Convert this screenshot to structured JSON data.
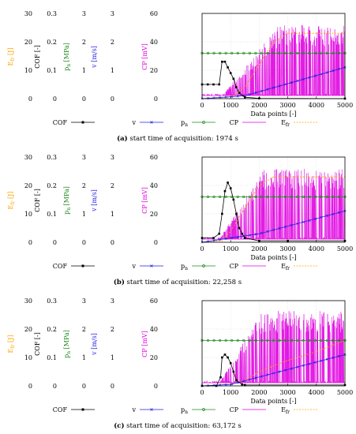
{
  "colors": {
    "cof": "#000000",
    "v": "#1f1fe0",
    "pn": "#1f8a1f",
    "cp": "#e000e0",
    "efr": "#ffa500",
    "grid": "#cccccc"
  },
  "chart_data": [
    {
      "type": "line",
      "caption_label": "(a)",
      "caption_text": "start time of acquisition: 1974 s",
      "xlabel": "Data points [-]",
      "xlim": [
        0,
        5000
      ],
      "x_ticks": [
        "0",
        "1000",
        "2000",
        "3000",
        "4000",
        "5000"
      ],
      "axes": [
        {
          "label": "E",
          "label_sub": "fr",
          "label_unit": "[J]",
          "color": "#ffa500",
          "ticks": [
            "30",
            "20",
            "10",
            "0"
          ]
        },
        {
          "label": "COF [-]",
          "color": "#000000",
          "ticks": [
            "0.3",
            "0.2",
            "0.1",
            "0"
          ]
        },
        {
          "label": "p",
          "label_sub": "n",
          "label_unit": "[MPa]",
          "color": "#1f8a1f",
          "ticks": [
            "3",
            "2",
            "1",
            "0"
          ]
        },
        {
          "label": "v [m/s]",
          "color": "#1f1fe0",
          "ticks": [
            "3",
            "2",
            "1",
            "0"
          ]
        },
        {
          "label": "CP [mV]",
          "color": "#e000e0",
          "ticks": [
            "60",
            "40",
            "20",
            "0"
          ]
        }
      ],
      "ylim": [
        0,
        60
      ],
      "series": [
        {
          "name": "COF",
          "values": [
            [
              0,
              0.05
            ],
            [
              200,
              0.05
            ],
            [
              400,
              0.05
            ],
            [
              600,
              0.05
            ],
            [
              700,
              0.13
            ],
            [
              800,
              0.13
            ],
            [
              900,
              0.11
            ],
            [
              1000,
              0.09
            ],
            [
              1100,
              0.07
            ],
            [
              1200,
              0.04
            ],
            [
              1300,
              0.02
            ],
            [
              1500,
              0.005
            ],
            [
              2000,
              0.001
            ],
            [
              5000,
              0.0
            ]
          ]
        },
        {
          "name": "v",
          "values": [
            [
              0,
              0
            ],
            [
              1500,
              0.1
            ],
            [
              5000,
              1.1
            ]
          ]
        },
        {
          "name": "pn",
          "values": [
            [
              0,
              1.6
            ],
            [
              5000,
              1.6
            ]
          ]
        },
        {
          "name": "Efr",
          "values": [
            [
              0,
              0
            ],
            [
              1000,
              0.5
            ],
            [
              1500,
              4
            ],
            [
              2000,
              12
            ],
            [
              2500,
              20
            ],
            [
              3000,
              23
            ],
            [
              3500,
              23
            ],
            [
              4000,
              23
            ],
            [
              5000,
              23
            ]
          ]
        },
        {
          "name": "CP",
          "onset": 700,
          "baseline": 2,
          "peak_growth": 200,
          "peak_max": 50
        }
      ]
    },
    {
      "type": "line",
      "caption_label": "(b)",
      "caption_text": "start time of acquisition: 22,258 s",
      "xlabel": "Data points [-]",
      "xlim": [
        0,
        5000
      ],
      "x_ticks": [
        "0",
        "1000",
        "2000",
        "3000",
        "4000",
        "5000"
      ],
      "axes": [
        {
          "label": "E",
          "label_sub": "fr",
          "label_unit": "[J]",
          "color": "#ffa500",
          "ticks": [
            "30",
            "20",
            "10",
            "0"
          ]
        },
        {
          "label": "COF [-]",
          "color": "#000000",
          "ticks": [
            "0.3",
            "0.2",
            "0.1",
            "0"
          ]
        },
        {
          "label": "p",
          "label_sub": "n",
          "label_unit": "[MPa]",
          "color": "#1f8a1f",
          "ticks": [
            "3",
            "2",
            "1",
            "0"
          ]
        },
        {
          "label": "v [m/s]",
          "color": "#1f1fe0",
          "ticks": [
            "3",
            "2",
            "1",
            "0"
          ]
        },
        {
          "label": "CP [mV]",
          "color": "#e000e0",
          "ticks": [
            "60",
            "40",
            "20",
            "0"
          ]
        }
      ],
      "ylim": [
        0,
        60
      ],
      "series": [
        {
          "name": "COF",
          "values": [
            [
              0,
              0.015
            ],
            [
              400,
              0.015
            ],
            [
              600,
              0.03
            ],
            [
              700,
              0.1
            ],
            [
              800,
              0.18
            ],
            [
              900,
              0.21
            ],
            [
              1000,
              0.19
            ],
            [
              1100,
              0.15
            ],
            [
              1200,
              0.1
            ],
            [
              1300,
              0.05
            ],
            [
              1400,
              0.03
            ],
            [
              1500,
              0.015
            ],
            [
              2000,
              0.005
            ],
            [
              3000,
              0.005
            ],
            [
              5000,
              0.005
            ]
          ]
        },
        {
          "name": "v",
          "values": [
            [
              0,
              0
            ],
            [
              2000,
              0.3
            ],
            [
              5000,
              1.1
            ]
          ]
        },
        {
          "name": "pn",
          "values": [
            [
              0,
              1.6
            ],
            [
              5000,
              1.6
            ]
          ]
        },
        {
          "name": "Efr",
          "values": [
            [
              0,
              0
            ],
            [
              700,
              0.5
            ],
            [
              1000,
              4
            ],
            [
              1500,
              12
            ],
            [
              2000,
              20
            ],
            [
              2500,
              23
            ],
            [
              3000,
              23
            ],
            [
              5000,
              23
            ]
          ]
        },
        {
          "name": "CP",
          "onset": 600,
          "baseline": 2,
          "peak_growth": 150,
          "peak_max": 50
        }
      ]
    },
    {
      "type": "line",
      "caption_label": "(c)",
      "caption_text": "start time of acquisition: 63,172 s",
      "xlabel": "Data points [-]",
      "xlim": [
        0,
        5000
      ],
      "x_ticks": [
        "0",
        "1000",
        "2000",
        "3000",
        "4000",
        "5000"
      ],
      "axes": [
        {
          "label": "E",
          "label_sub": "fr",
          "label_unit": "[J]",
          "color": "#ffa500",
          "ticks": [
            "30",
            "20",
            "10",
            "0"
          ]
        },
        {
          "label": "COF [-]",
          "color": "#000000",
          "ticks": [
            "0.3",
            "0.2",
            "0.1",
            "0"
          ]
        },
        {
          "label": "p",
          "label_sub": "n",
          "label_unit": "[MPa]",
          "color": "#1f8a1f",
          "ticks": [
            "3",
            "2",
            "1",
            "0"
          ]
        },
        {
          "label": "v [m/s]",
          "color": "#1f1fe0",
          "ticks": [
            "3",
            "2",
            "1",
            "0"
          ]
        },
        {
          "label": "CP [mV]",
          "color": "#e000e0",
          "ticks": [
            "60",
            "40",
            "20",
            "0"
          ]
        }
      ],
      "ylim": [
        0,
        60
      ],
      "series": [
        {
          "name": "COF",
          "values": [
            [
              0,
              0.0
            ],
            [
              500,
              0.0
            ],
            [
              650,
              0.03
            ],
            [
              700,
              0.1
            ],
            [
              800,
              0.11
            ],
            [
              900,
              0.1
            ],
            [
              1000,
              0.08
            ],
            [
              1100,
              0.05
            ],
            [
              1200,
              0.02
            ],
            [
              1400,
              0.005
            ],
            [
              1500,
              0.003
            ],
            [
              5000,
              0.003
            ]
          ]
        },
        {
          "name": "v",
          "values": [
            [
              0,
              0
            ],
            [
              1000,
              0.05
            ],
            [
              5000,
              1.1
            ]
          ]
        },
        {
          "name": "pn",
          "values": [
            [
              0,
              1.6
            ],
            [
              5000,
              1.6
            ]
          ]
        },
        {
          "name": "Efr",
          "values": [
            [
              0,
              0
            ],
            [
              1000,
              0.5
            ],
            [
              1500,
              2
            ],
            [
              2000,
              5
            ],
            [
              3000,
              9
            ],
            [
              4000,
              12
            ],
            [
              5000,
              16
            ]
          ]
        },
        {
          "name": "CP",
          "onset": 600,
          "baseline": 2,
          "peak_growth": 150,
          "peak_max": 51
        }
      ]
    }
  ],
  "legend": [
    {
      "key": "cof",
      "label": "COF",
      "sub": ""
    },
    {
      "key": "v",
      "label": "v",
      "sub": ""
    },
    {
      "key": "pn",
      "label": "p",
      "sub": "n"
    },
    {
      "key": "cp",
      "label": "CP",
      "sub": ""
    },
    {
      "key": "efr",
      "label": "E",
      "sub": "fr"
    }
  ]
}
